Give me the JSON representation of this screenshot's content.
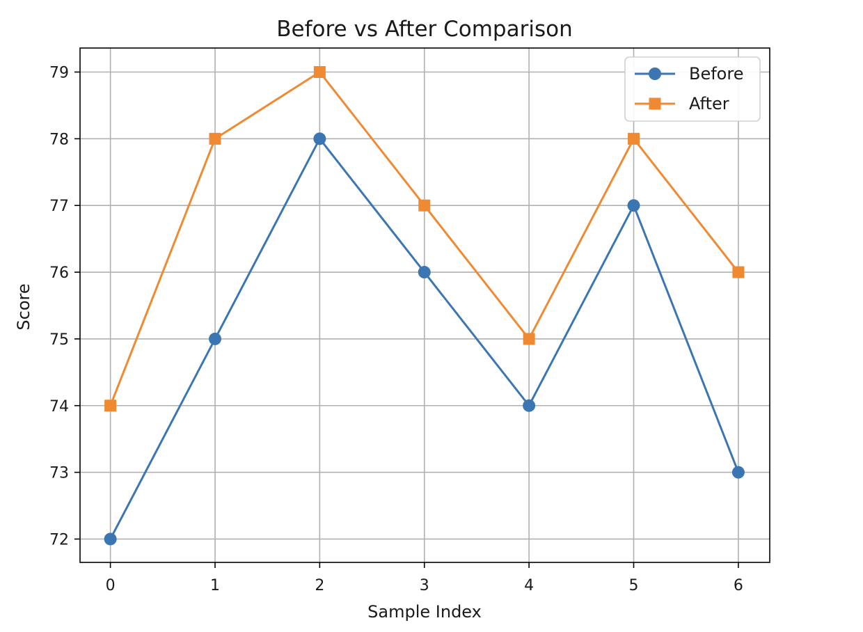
{
  "chart_data": {
    "type": "line",
    "title": "Before vs After Comparison",
    "xlabel": "Sample Index",
    "ylabel": "Score",
    "x": [
      0,
      1,
      2,
      3,
      4,
      5,
      6
    ],
    "x_ticks": [
      "0",
      "1",
      "2",
      "3",
      "4",
      "5",
      "6"
    ],
    "y_ticks": [
      "72",
      "73",
      "74",
      "75",
      "76",
      "77",
      "78",
      "79"
    ],
    "xlim": [
      -0.29,
      6.3
    ],
    "ylim": [
      71.65,
      79.36
    ],
    "grid": true,
    "legend_position": "top-right",
    "series": [
      {
        "name": "Before",
        "values": [
          72,
          75,
          78,
          76,
          74,
          77,
          73
        ],
        "color": "#3b76b3",
        "marker": "circle"
      },
      {
        "name": "After",
        "values": [
          74,
          78,
          79,
          77,
          75,
          78,
          76
        ],
        "color": "#ef8a33",
        "marker": "square"
      }
    ]
  }
}
